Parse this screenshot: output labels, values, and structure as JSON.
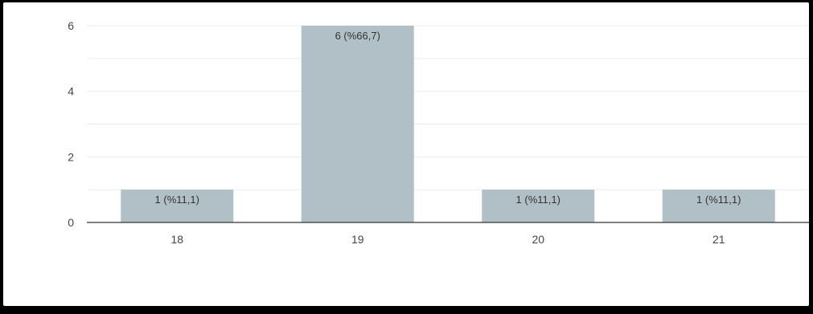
{
  "chart_data": {
    "type": "bar",
    "categories": [
      "18",
      "19",
      "20",
      "21"
    ],
    "values": [
      1,
      6,
      1,
      1
    ],
    "data_labels": [
      "1 (%11,1)",
      "6 (%66,7)",
      "1 (%11,1)",
      "1 (%11,1)"
    ],
    "title": "",
    "xlabel": "",
    "ylabel": "",
    "ylim": [
      0,
      6
    ],
    "yticks": [
      "0",
      "2",
      "4",
      "6"
    ],
    "grid": true,
    "legend": "none",
    "colors": {
      "bar": "#b0c0c6",
      "grid": "#ebebeb",
      "axis": "#333333",
      "frame": "#000000"
    }
  }
}
